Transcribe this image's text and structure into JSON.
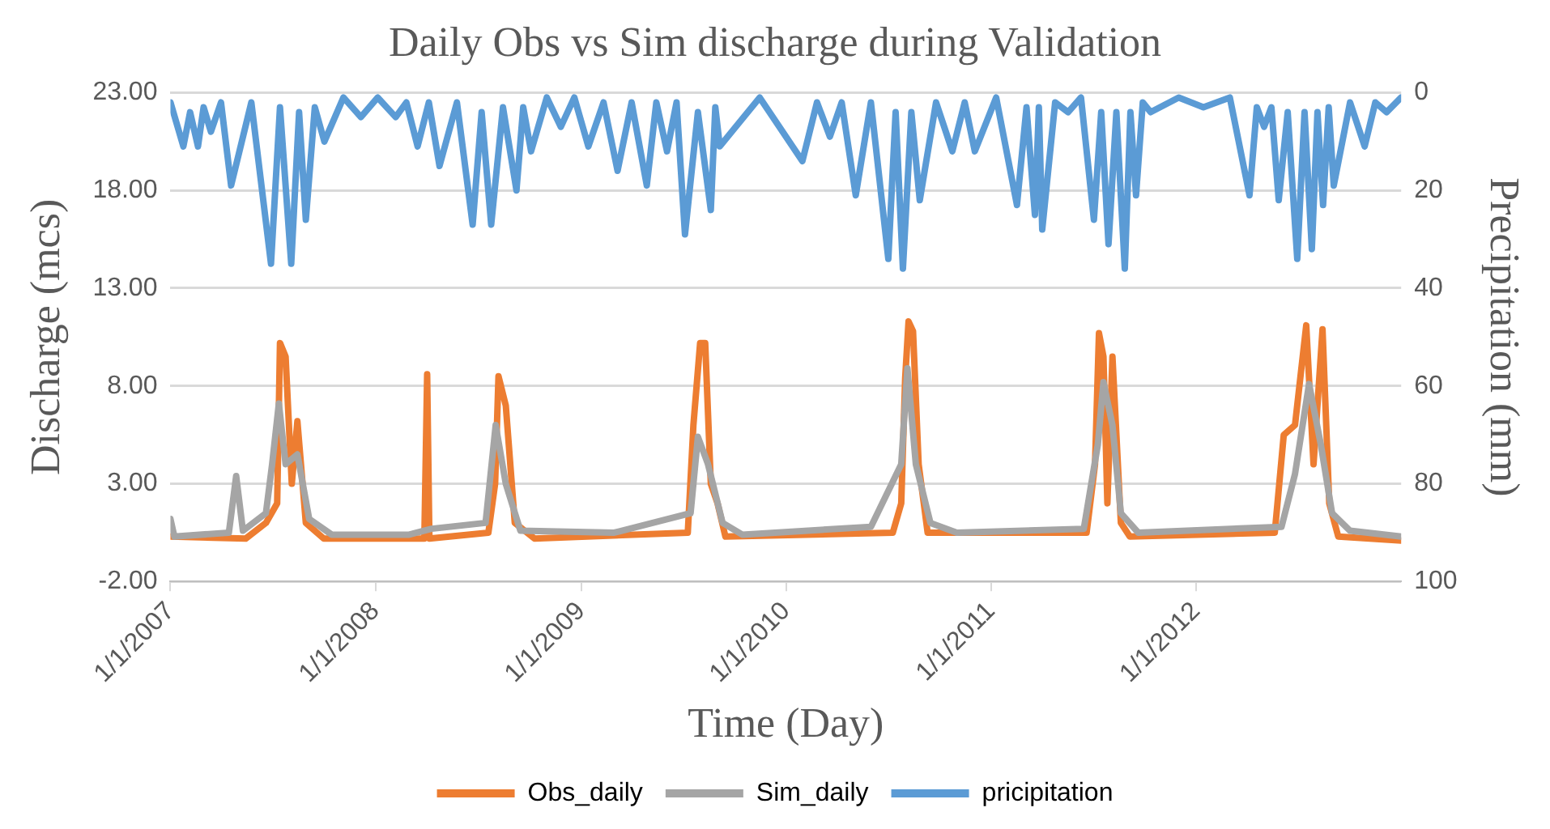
{
  "chart_data": {
    "type": "line",
    "title": "Daily Obs vs Sim discharge during Validation",
    "xlabel": "Time (Day)",
    "ylabel": "Discharge (mcs)",
    "y2label": "Precipitation (mm)",
    "xlim": [
      "2007-01-01",
      "2012-12-31"
    ],
    "xticks": [
      {
        "value": "2007-01-01",
        "label": "1/1/2007"
      },
      {
        "value": "2008-01-01",
        "label": "1/1/2008"
      },
      {
        "value": "2009-01-01",
        "label": "1/1/2009"
      },
      {
        "value": "2010-01-01",
        "label": "1/1/2010"
      },
      {
        "value": "2011-01-01",
        "label": "1/1/2011"
      },
      {
        "value": "2012-01-01",
        "label": "1/1/2012"
      }
    ],
    "ylim": [
      -2,
      23
    ],
    "yticks": [
      {
        "value": -2,
        "label": "-2.00"
      },
      {
        "value": 3,
        "label": "3.00"
      },
      {
        "value": 8,
        "label": "8.00"
      },
      {
        "value": 13,
        "label": "13.00"
      },
      {
        "value": 18,
        "label": "18.00"
      },
      {
        "value": 23,
        "label": "23.00"
      }
    ],
    "y2lim": [
      100,
      0
    ],
    "y2ticks": [
      0,
      20,
      40,
      60,
      80,
      100
    ],
    "grid": "y",
    "legend": "bottom",
    "marker": "none",
    "line_style": "solid",
    "series": [
      {
        "name": "pricipitation",
        "color": "#5b9bd5",
        "axis": "y2",
        "x": [
          "2007-01-01",
          "2007-01-24",
          "2007-02-05",
          "2007-02-19",
          "2007-03-01",
          "2007-03-14",
          "2007-04-01",
          "2007-04-19",
          "2007-05-25",
          "2007-06-29",
          "2007-07-15",
          "2007-08-04",
          "2007-08-18",
          "2007-08-30",
          "2007-09-15",
          "2007-10-02",
          "2007-11-05",
          "2007-12-06",
          "2008-01-05",
          "2008-02-06",
          "2008-02-25",
          "2008-03-16",
          "2008-04-05",
          "2008-04-24",
          "2008-05-25",
          "2008-06-22",
          "2008-07-08",
          "2008-07-25",
          "2008-08-15",
          "2008-09-08",
          "2008-09-20",
          "2008-10-04",
          "2008-11-01",
          "2008-11-26",
          "2008-12-20",
          "2009-01-14",
          "2009-02-10",
          "2009-03-07",
          "2009-04-01",
          "2009-04-28",
          "2009-05-15",
          "2009-06-03",
          "2009-06-20",
          "2009-07-05",
          "2009-07-28",
          "2009-08-20",
          "2009-08-28",
          "2009-09-05",
          "2009-11-15",
          "2010-01-30",
          "2010-02-25",
          "2010-03-20",
          "2010-04-10",
          "2010-05-05",
          "2010-06-01",
          "2010-07-02",
          "2010-07-15",
          "2010-07-28",
          "2010-08-12",
          "2010-08-27",
          "2010-09-25",
          "2010-10-24",
          "2010-11-15",
          "2010-12-03",
          "2011-01-10",
          "2011-02-16",
          "2011-03-05",
          "2011-03-20",
          "2011-03-27",
          "2011-04-02",
          "2011-04-25",
          "2011-05-18",
          "2011-06-10",
          "2011-07-03",
          "2011-07-16",
          "2011-07-29",
          "2011-08-12",
          "2011-08-27",
          "2011-09-06",
          "2011-09-16",
          "2011-09-28",
          "2011-10-12",
          "2011-12-01",
          "2012-01-14",
          "2012-03-01",
          "2012-04-05",
          "2012-04-18",
          "2012-05-01",
          "2012-05-14",
          "2012-05-27",
          "2012-06-12",
          "2012-06-29",
          "2012-07-12",
          "2012-07-25",
          "2012-08-04",
          "2012-08-14",
          "2012-08-24",
          "2012-09-02",
          "2012-10-01",
          "2012-10-27",
          "2012-11-15",
          "2012-12-05",
          "2012-12-31"
        ],
        "values": [
          2,
          11,
          4,
          11,
          3,
          8,
          2,
          19,
          2,
          35,
          3,
          35,
          4,
          26,
          3,
          10,
          1,
          5,
          1,
          5,
          2,
          11,
          2,
          15,
          2,
          27,
          4,
          27,
          3,
          20,
          3,
          12,
          1,
          7,
          1,
          11,
          2,
          16,
          2,
          19,
          2,
          12,
          2,
          29,
          4,
          24,
          3,
          11,
          1,
          14,
          2,
          9,
          2,
          21,
          2,
          34,
          4,
          36,
          4,
          22,
          2,
          12,
          2,
          12,
          1,
          23,
          3,
          25,
          3,
          28,
          2,
          4,
          1,
          26,
          4,
          31,
          4,
          36,
          4,
          21,
          2,
          4,
          1,
          3,
          1,
          21,
          3,
          7,
          3,
          22,
          4,
          34,
          4,
          32,
          4,
          23,
          3,
          19,
          2,
          11,
          2,
          4,
          1
        ]
      },
      {
        "name": "Obs_daily",
        "color": "#ed7d31",
        "x": [
          "2007-01-01",
          "2007-05-15",
          "2007-06-20",
          "2007-07-10",
          "2007-07-15",
          "2007-07-25",
          "2007-08-05",
          "2007-08-15",
          "2007-08-30",
          "2007-10-01",
          "2008-03-28",
          "2008-04-02",
          "2008-04-06",
          "2008-07-20",
          "2008-08-01",
          "2008-08-07",
          "2008-08-20",
          "2008-09-05",
          "2008-10-10",
          "2009-07-10",
          "2009-07-20",
          "2009-08-01",
          "2009-08-10",
          "2009-08-20",
          "2009-09-01",
          "2009-09-15",
          "2010-07-10",
          "2010-07-25",
          "2010-08-01",
          "2010-08-07",
          "2010-08-15",
          "2010-08-25",
          "2010-09-10",
          "2011-06-20",
          "2011-07-05",
          "2011-07-12",
          "2011-07-20",
          "2011-07-27",
          "2011-08-05",
          "2011-08-20",
          "2011-09-05",
          "2012-05-20",
          "2012-06-05",
          "2012-06-25",
          "2012-07-15",
          "2012-07-28",
          "2012-08-13",
          "2012-08-25",
          "2012-09-10",
          "2012-12-31"
        ],
        "values": [
          0.3,
          0.2,
          1,
          2,
          10.2,
          9.5,
          3,
          6.2,
          1,
          0.2,
          0.2,
          8.6,
          0.2,
          0.5,
          3,
          8.5,
          7,
          1,
          0.2,
          0.5,
          6,
          10.2,
          10.2,
          3,
          2,
          0.3,
          0.5,
          2,
          8.4,
          11.3,
          10.8,
          4,
          0.5,
          0.5,
          4,
          10.7,
          9.5,
          2,
          9.5,
          1,
          0.3,
          0.5,
          5.5,
          6,
          11.1,
          4,
          10.9,
          2,
          0.3,
          0.1
        ]
      },
      {
        "name": "Sim_daily",
        "color": "#a5a5a5",
        "x": [
          "2007-01-01",
          "2007-01-08",
          "2007-04-15",
          "2007-04-28",
          "2007-05-10",
          "2007-06-20",
          "2007-07-01",
          "2007-07-13",
          "2007-07-25",
          "2007-08-15",
          "2007-09-05",
          "2007-10-15",
          "2008-03-01",
          "2008-04-10",
          "2008-07-15",
          "2008-08-02",
          "2008-08-20",
          "2008-09-15",
          "2009-03-01",
          "2009-07-15",
          "2009-07-28",
          "2009-08-15",
          "2009-09-10",
          "2009-10-15",
          "2010-06-01",
          "2010-07-25",
          "2010-08-05",
          "2010-08-20",
          "2010-09-15",
          "2010-11-01",
          "2011-06-15",
          "2011-07-10",
          "2011-07-20",
          "2011-08-05",
          "2011-08-20",
          "2011-09-20",
          "2012-06-01",
          "2012-06-25",
          "2012-07-20",
          "2012-08-10",
          "2012-08-30",
          "2012-10-01",
          "2012-12-31"
        ],
        "values": [
          1.2,
          0.3,
          0.5,
          3.4,
          0.6,
          1.5,
          4,
          7.1,
          4,
          4.5,
          1.2,
          0.4,
          0.4,
          0.7,
          1,
          6,
          3,
          0.6,
          0.5,
          1.5,
          5.4,
          4,
          1,
          0.4,
          0.8,
          4,
          8.9,
          4,
          1,
          0.5,
          0.7,
          5,
          8.2,
          6,
          1.5,
          0.5,
          0.8,
          3.5,
          8.1,
          5,
          1.5,
          0.6,
          0.3
        ]
      }
    ]
  }
}
